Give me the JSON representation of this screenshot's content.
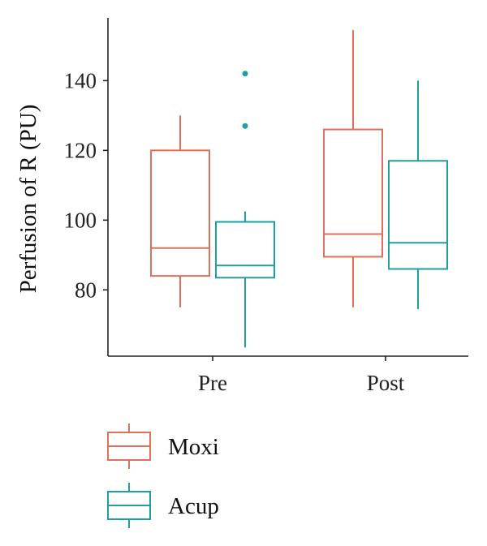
{
  "chart_data": {
    "type": "boxplot",
    "categories": [
      "Pre",
      "Post"
    ],
    "ylabel": "Perfusion of R (PU)",
    "xlabel": "",
    "ylim": [
      61,
      158
    ],
    "yticks": [
      80,
      100,
      120,
      140
    ],
    "grid": false,
    "legend_position": "bottom-left",
    "series": [
      {
        "name": "Moxi",
        "color": "#E0705A",
        "boxes": [
          {
            "category": "Pre",
            "whisker_low": 75,
            "q1": 84,
            "median": 92,
            "q3": 120,
            "whisker_high": 130,
            "outliers": []
          },
          {
            "category": "Post",
            "whisker_low": 75,
            "q1": 89.5,
            "median": 96,
            "q3": 126,
            "whisker_high": 154.5,
            "outliers": []
          }
        ]
      },
      {
        "name": "Acup",
        "color": "#1FA0A0",
        "boxes": [
          {
            "category": "Pre",
            "whisker_low": 63.5,
            "q1": 83.5,
            "median": 87,
            "q3": 99.5,
            "whisker_high": 102.5,
            "outliers": [
              127,
              142
            ]
          },
          {
            "category": "Post",
            "whisker_low": 74.5,
            "q1": 86,
            "median": 93.5,
            "q3": 117,
            "whisker_high": 140,
            "outliers": []
          }
        ]
      }
    ]
  }
}
